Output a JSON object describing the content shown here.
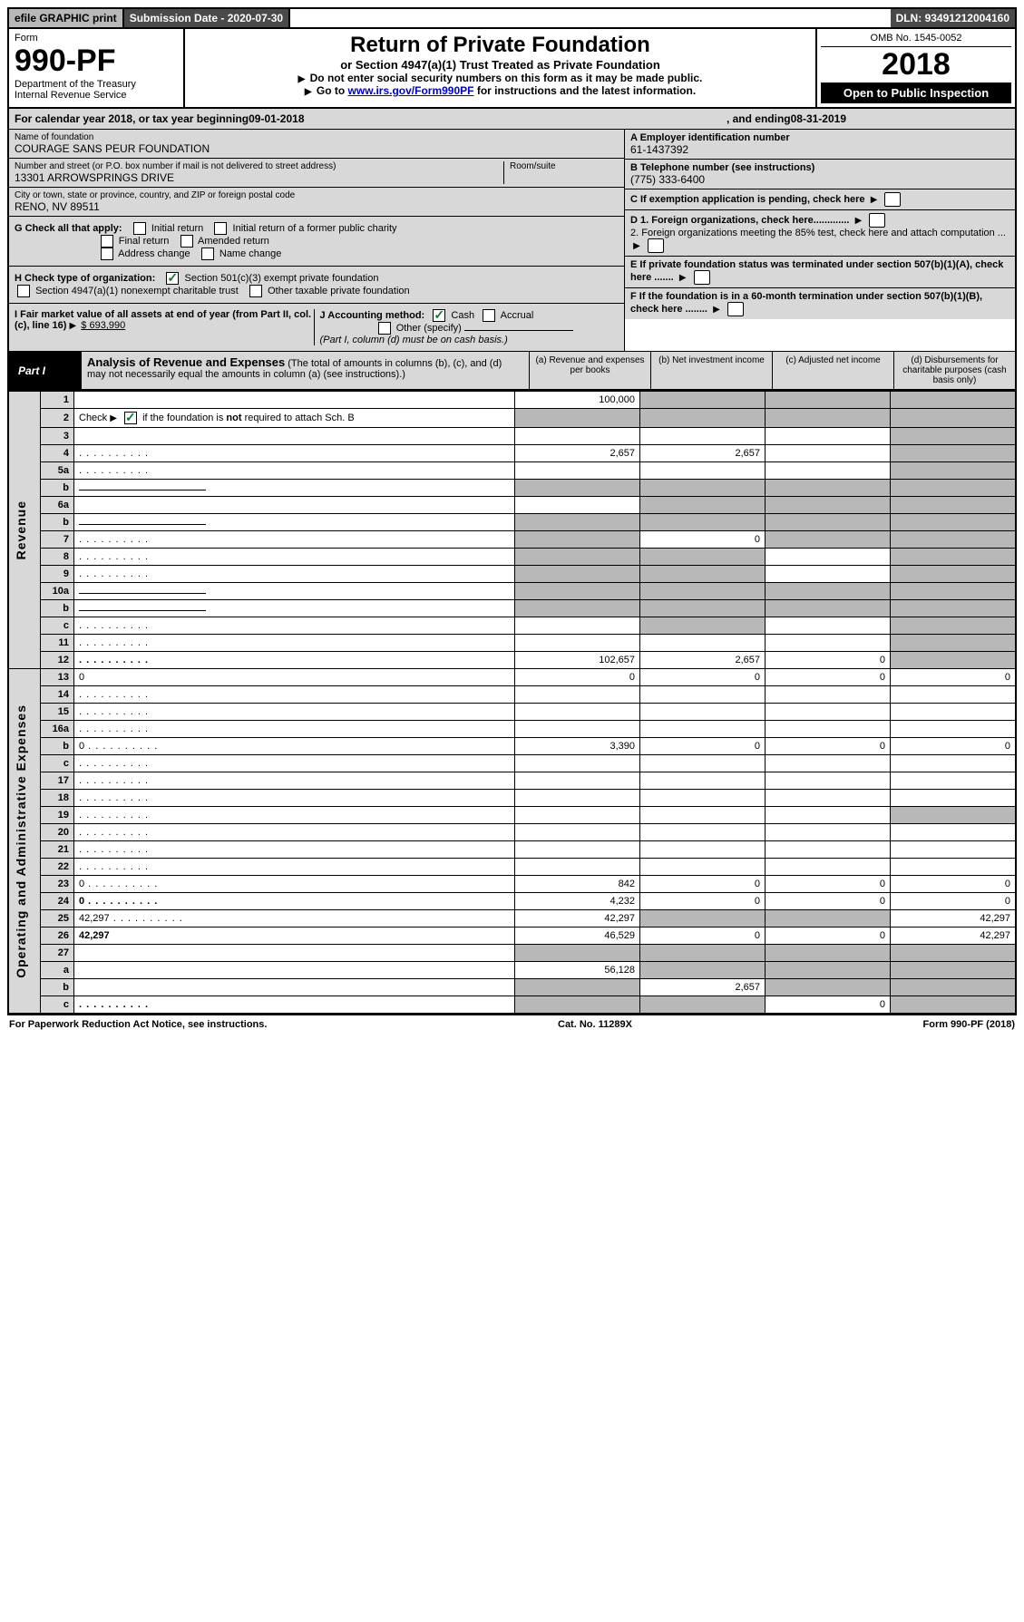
{
  "topbar": {
    "efile": "efile GRAPHIC print",
    "submission_label": "Submission Date - ",
    "submission_date": "2020-07-30",
    "dln_label": "DLN: ",
    "dln": "93491212004160"
  },
  "header": {
    "form_label": "Form",
    "form_number": "990-PF",
    "dept1": "Department of the Treasury",
    "dept2": "Internal Revenue Service",
    "title": "Return of Private Foundation",
    "subtitle": "or Section 4947(a)(1) Trust Treated as Private Foundation",
    "instr1": "Do not enter social security numbers on this form as it may be made public.",
    "instr2_pre": "Go to ",
    "instr2_link": "www.irs.gov/Form990PF",
    "instr2_post": " for instructions and the latest information.",
    "omb": "OMB No. 1545-0052",
    "year": "2018",
    "open": "Open to Public Inspection"
  },
  "calendar": {
    "pre": "For calendar year 2018, or tax year beginning ",
    "begin": "09-01-2018",
    "mid": ", and ending ",
    "end": "08-31-2019"
  },
  "id": {
    "name_label": "Name of foundation",
    "name": "COURAGE SANS PEUR FOUNDATION",
    "addr_label": "Number and street (or P.O. box number if mail is not delivered to street address)",
    "addr": "13301 ARROWSPRINGS DRIVE",
    "room_label": "Room/suite",
    "city_label": "City or town, state or province, country, and ZIP or foreign postal code",
    "city": "RENO, NV  89511",
    "ein_label": "A Employer identification number",
    "ein": "61-1437392",
    "phone_label": "B Telephone number (see instructions)",
    "phone": "(775) 333-6400",
    "c_label": "C  If exemption application is pending, check here",
    "d1": "D 1. Foreign organizations, check here.............",
    "d2": "2. Foreign organizations meeting the 85% test, check here and attach computation ...",
    "e_label": "E  If private foundation status was terminated under section 507(b)(1)(A), check here .......",
    "f_label": "F  If the foundation is in a 60-month termination under section 507(b)(1)(B), check here ........"
  },
  "checks": {
    "g_label": "G Check all that apply:",
    "g_opts": [
      "Initial return",
      "Initial return of a former public charity",
      "Final return",
      "Amended return",
      "Address change",
      "Name change"
    ],
    "h_label": "H Check type of organization:",
    "h1": "Section 501(c)(3) exempt private foundation",
    "h2": "Section 4947(a)(1) nonexempt charitable trust",
    "h3": "Other taxable private foundation",
    "i_label": "I Fair market value of all assets at end of year (from Part II, col. (c), line 16)",
    "i_val": "$  693,990",
    "j_label": "J Accounting method:",
    "j1": "Cash",
    "j2": "Accrual",
    "j3": "Other (specify)",
    "j_note": "(Part I, column (d) must be on cash basis.)"
  },
  "part1": {
    "tab": "Part I",
    "title": "Analysis of Revenue and Expenses",
    "note": " (The total of amounts in columns (b), (c), and (d) may not necessarily equal the amounts in column (a) (see instructions).)",
    "cols": {
      "a": "(a) Revenue and expenses per books",
      "b": "(b) Net investment income",
      "c": "(c) Adjusted net income",
      "d": "(d) Disbursements for charitable purposes (cash basis only)"
    }
  },
  "side_labels": {
    "revenue": "Revenue",
    "expenses": "Operating and Administrative Expenses"
  },
  "rows": [
    {
      "n": "1",
      "d": "",
      "a": "100,000",
      "b": "",
      "c": "",
      "shade": [
        "b",
        "c",
        "d"
      ]
    },
    {
      "n": "2",
      "d": "",
      "a": "",
      "b": "",
      "c": "",
      "shaded_all": true,
      "dots": true,
      "checkbox": true
    },
    {
      "n": "3",
      "d": "",
      "a": "",
      "b": "",
      "c": "",
      "shade": [
        "d"
      ]
    },
    {
      "n": "4",
      "d": "",
      "a": "2,657",
      "b": "2,657",
      "c": "",
      "shade": [
        "d"
      ],
      "dots": true
    },
    {
      "n": "5a",
      "d": "",
      "a": "",
      "b": "",
      "c": "",
      "shade": [
        "d"
      ],
      "dots": true
    },
    {
      "n": "b",
      "d": "",
      "a": "",
      "b": "",
      "c": "",
      "shaded_all": true,
      "underline": true
    },
    {
      "n": "6a",
      "d": "",
      "a": "",
      "b": "",
      "c": "",
      "shade": [
        "b",
        "c",
        "d"
      ]
    },
    {
      "n": "b",
      "d": "",
      "a": "",
      "b": "",
      "c": "",
      "shaded_all": true,
      "underline": true
    },
    {
      "n": "7",
      "d": "",
      "a": "",
      "b": "0",
      "c": "",
      "shade": [
        "a",
        "c",
        "d"
      ],
      "dots": true
    },
    {
      "n": "8",
      "d": "",
      "a": "",
      "b": "",
      "c": "",
      "shade": [
        "a",
        "b",
        "d"
      ],
      "dots": true
    },
    {
      "n": "9",
      "d": "",
      "a": "",
      "b": "",
      "c": "",
      "shade": [
        "a",
        "b",
        "d"
      ],
      "dots": true
    },
    {
      "n": "10a",
      "d": "",
      "a": "",
      "b": "",
      "c": "",
      "shaded_all": true,
      "underline": true
    },
    {
      "n": "b",
      "d": "",
      "a": "",
      "b": "",
      "c": "",
      "shaded_all": true,
      "dots": true,
      "underline": true
    },
    {
      "n": "c",
      "d": "",
      "a": "",
      "b": "",
      "c": "",
      "shade": [
        "b",
        "d"
      ],
      "dots": true
    },
    {
      "n": "11",
      "d": "",
      "a": "",
      "b": "",
      "c": "",
      "shade": [
        "d"
      ],
      "dots": true
    },
    {
      "n": "12",
      "d": "",
      "a": "102,657",
      "b": "2,657",
      "c": "0",
      "bold": true,
      "shade": [
        "d"
      ],
      "dots": true
    },
    {
      "n": "13",
      "d": "0",
      "a": "0",
      "b": "0",
      "c": "0",
      "sec": "exp"
    },
    {
      "n": "14",
      "d": "",
      "a": "",
      "b": "",
      "c": "",
      "dots": true
    },
    {
      "n": "15",
      "d": "",
      "a": "",
      "b": "",
      "c": "",
      "dots": true
    },
    {
      "n": "16a",
      "d": "",
      "a": "",
      "b": "",
      "c": "",
      "dots": true
    },
    {
      "n": "b",
      "d": "0",
      "a": "3,390",
      "b": "0",
      "c": "0",
      "dots": true
    },
    {
      "n": "c",
      "d": "",
      "a": "",
      "b": "",
      "c": "",
      "dots": true
    },
    {
      "n": "17",
      "d": "",
      "a": "",
      "b": "",
      "c": "",
      "dots": true
    },
    {
      "n": "18",
      "d": "",
      "a": "",
      "b": "",
      "c": "",
      "dots": true
    },
    {
      "n": "19",
      "d": "",
      "a": "",
      "b": "",
      "c": "",
      "shade": [
        "d"
      ],
      "dots": true
    },
    {
      "n": "20",
      "d": "",
      "a": "",
      "b": "",
      "c": "",
      "dots": true
    },
    {
      "n": "21",
      "d": "",
      "a": "",
      "b": "",
      "c": "",
      "dots": true
    },
    {
      "n": "22",
      "d": "",
      "a": "",
      "b": "",
      "c": "",
      "dots": true
    },
    {
      "n": "23",
      "d": "0",
      "a": "842",
      "b": "0",
      "c": "0",
      "dots": true
    },
    {
      "n": "24",
      "d": "0",
      "a": "4,232",
      "b": "0",
      "c": "0",
      "bold": true,
      "dots": true
    },
    {
      "n": "25",
      "d": "42,297",
      "a": "42,297",
      "b": "",
      "c": "",
      "shade": [
        "b",
        "c"
      ],
      "dots": true
    },
    {
      "n": "26",
      "d": "42,297",
      "a": "46,529",
      "b": "0",
      "c": "0",
      "bold": true
    },
    {
      "n": "27",
      "d": "",
      "a": "",
      "b": "",
      "c": "",
      "shaded_all": true
    },
    {
      "n": "a",
      "d": "",
      "a": "56,128",
      "b": "",
      "c": "",
      "bold": true,
      "shade": [
        "b",
        "c",
        "d"
      ]
    },
    {
      "n": "b",
      "d": "",
      "a": "",
      "b": "2,657",
      "c": "",
      "bold": true,
      "shade": [
        "a",
        "c",
        "d"
      ]
    },
    {
      "n": "c",
      "d": "",
      "a": "",
      "b": "",
      "c": "0",
      "bold": true,
      "shade": [
        "a",
        "b",
        "d"
      ],
      "dots": true
    }
  ],
  "footer": {
    "left": "For Paperwork Reduction Act Notice, see instructions.",
    "mid": "Cat. No. 11289X",
    "right": "Form 990-PF (2018)"
  }
}
